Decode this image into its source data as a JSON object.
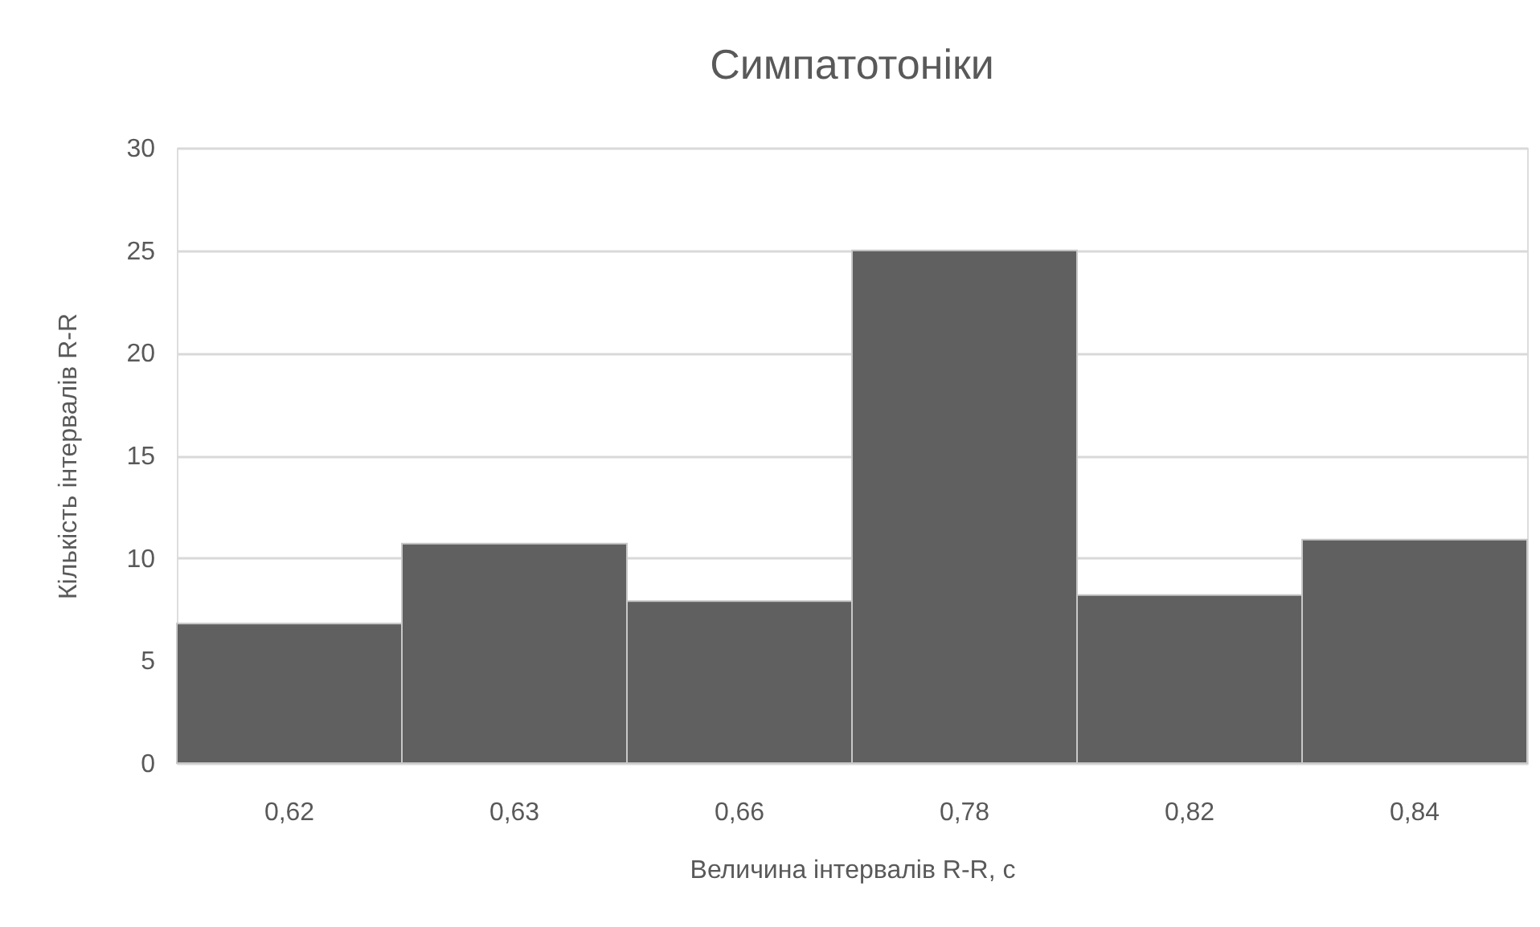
{
  "chart_data": {
    "type": "bar",
    "title": "Симпатотоніки",
    "xlabel": "Величина інтервалів R-R, с",
    "ylabel": "Кількість інтервалів R-R",
    "categories": [
      "0,62",
      "0,63",
      "0,66",
      "0,78",
      "0,82",
      "0,84"
    ],
    "values": [
      6.8,
      10.7,
      7.9,
      25,
      8.2,
      10.9
    ],
    "color": "#606060",
    "ylim": [
      0,
      30
    ],
    "yticks": [
      0,
      5,
      10,
      15,
      20,
      25,
      30
    ],
    "grid": "y"
  }
}
